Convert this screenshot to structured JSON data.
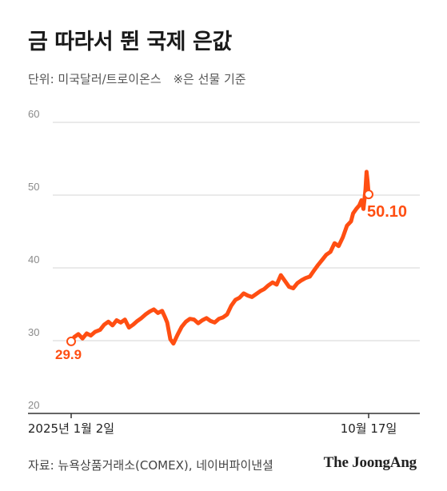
{
  "title": "금 따라서 뛴 국제 은값",
  "subtitle": {
    "unit": "단위: 미국달러/트로이온스",
    "note": "※은 선물 기준"
  },
  "source": "자료: 뉴욕상품거래소(COMEX), 네이버파이낸셜",
  "brand": "The JoongAng",
  "colors": {
    "line": "#ff4e12",
    "grid": "#d6d6d6",
    "axis": "#333333",
    "label": "#ff4e12"
  },
  "chart_data": {
    "type": "line",
    "ylim": [
      20,
      60
    ],
    "yticks": [
      "20",
      "30",
      "40",
      "50",
      "60"
    ],
    "grid": true,
    "x_labels": {
      "start": "2025년 1월 2일",
      "end": "10월 17일"
    },
    "start_label": "29.9",
    "end_label": "50.10",
    "series": [
      {
        "x": [
          "2025-01-02",
          "2025-01-05",
          "2025-01-09",
          "2025-01-13",
          "2025-01-17",
          "2025-01-21",
          "2025-01-25",
          "2025-01-30",
          "2025-02-03",
          "2025-02-07",
          "2025-02-11",
          "2025-02-15",
          "2025-02-19",
          "2025-02-23",
          "2025-02-27",
          "2025-03-03",
          "2025-03-07",
          "2025-03-11",
          "2025-03-15",
          "2025-03-19",
          "2025-03-23",
          "2025-03-27",
          "2025-03-31",
          "2025-04-03",
          "2025-04-05",
          "2025-04-08",
          "2025-04-11",
          "2025-04-15",
          "2025-04-19",
          "2025-04-23",
          "2025-04-27",
          "2025-05-01",
          "2025-05-05",
          "2025-05-09",
          "2025-05-13",
          "2025-05-17",
          "2025-05-21",
          "2025-05-25",
          "2025-05-29",
          "2025-06-02",
          "2025-06-06",
          "2025-06-10",
          "2025-06-14",
          "2025-06-18",
          "2025-06-22",
          "2025-06-26",
          "2025-06-30",
          "2025-07-04",
          "2025-07-08",
          "2025-07-12",
          "2025-07-16",
          "2025-07-20",
          "2025-07-24",
          "2025-07-28",
          "2025-08-01",
          "2025-08-05",
          "2025-08-09",
          "2025-08-13",
          "2025-08-17",
          "2025-08-21",
          "2025-08-25",
          "2025-08-29",
          "2025-09-02",
          "2025-09-06",
          "2025-09-10",
          "2025-09-14",
          "2025-09-18",
          "2025-09-22",
          "2025-09-26",
          "2025-09-30",
          "2025-10-02",
          "2025-10-05",
          "2025-10-08",
          "2025-10-10",
          "2025-10-12",
          "2025-10-14",
          "2025-10-15",
          "2025-10-16",
          "2025-10-17"
        ],
        "values": [
          29.9,
          30.5,
          30.9,
          30.3,
          31.0,
          30.7,
          31.2,
          31.5,
          32.2,
          32.6,
          32.1,
          32.8,
          32.5,
          32.9,
          31.8,
          32.2,
          32.7,
          33.1,
          33.6,
          34.0,
          34.3,
          33.8,
          34.1,
          33.2,
          32.5,
          30.2,
          29.6,
          30.8,
          31.9,
          32.6,
          33.0,
          32.9,
          32.4,
          32.8,
          33.1,
          32.7,
          32.5,
          33.0,
          33.2,
          33.6,
          34.8,
          35.6,
          35.9,
          36.5,
          36.2,
          36.0,
          36.4,
          36.8,
          37.1,
          37.6,
          38.0,
          37.7,
          39.0,
          38.2,
          37.4,
          37.2,
          37.9,
          38.3,
          38.6,
          38.8,
          39.6,
          40.4,
          41.1,
          41.8,
          42.2,
          43.4,
          43.0,
          44.2,
          45.8,
          46.4,
          47.5,
          48.1,
          48.6,
          49.3,
          48.1,
          50.8,
          53.2,
          51.9,
          50.1
        ]
      }
    ]
  }
}
